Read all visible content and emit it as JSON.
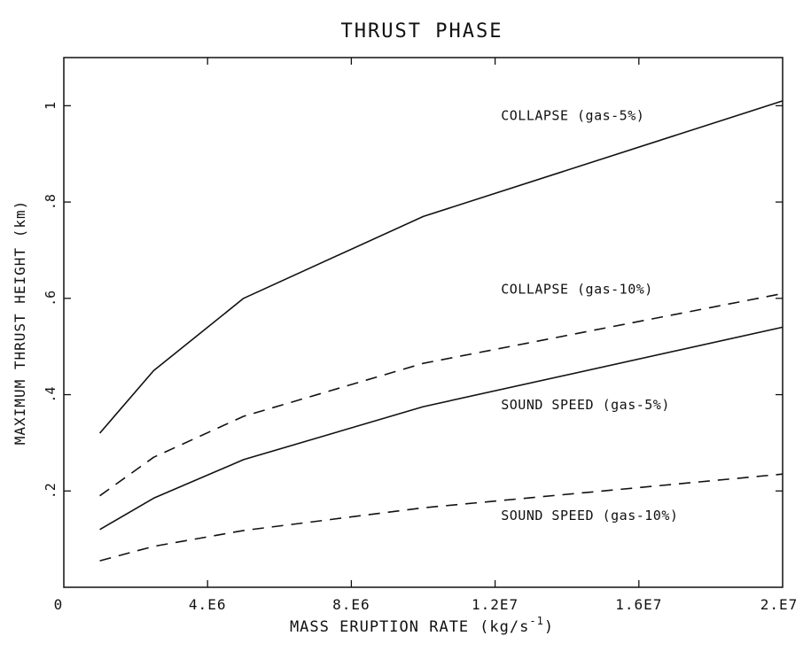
{
  "chart_data": {
    "type": "line",
    "title": "THRUST PHASE",
    "xlabel": "MASS ERUPTION RATE",
    "xlabel_unit_prefix": "(kg/s",
    "xlabel_unit_exp": "-1",
    "xlabel_unit_suffix": ")",
    "ylabel": "MAXIMUM THRUST HEIGHT (km)",
    "xlim": [
      0,
      20000000
    ],
    "ylim": [
      0,
      1.1
    ],
    "x_ticks": [
      {
        "value": 0,
        "label": "0"
      },
      {
        "value": 4000000,
        "label": "4.E6"
      },
      {
        "value": 8000000,
        "label": "8.E6"
      },
      {
        "value": 12000000,
        "label": "1.2E7"
      },
      {
        "value": 16000000,
        "label": "1.6E7"
      },
      {
        "value": 20000000,
        "label": "2.E7"
      }
    ],
    "y_ticks": [
      {
        "value": 0.2,
        "label": ".2"
      },
      {
        "value": 0.4,
        "label": ".4"
      },
      {
        "value": 0.6,
        "label": ".6"
      },
      {
        "value": 0.8,
        "label": ".8"
      },
      {
        "value": 1.0,
        "label": "1"
      }
    ],
    "grid": false,
    "series": [
      {
        "name": "COLLAPSE (gas-5%)",
        "style": "solid",
        "x": [
          1000000,
          2500000,
          5000000,
          10000000,
          20000000
        ],
        "y": [
          0.32,
          0.45,
          0.6,
          0.77,
          1.01
        ],
        "label_at": [
          15000000,
          0.97
        ]
      },
      {
        "name": "COLLAPSE (gas-10%)",
        "style": "dashed",
        "x": [
          1000000,
          2500000,
          5000000,
          10000000,
          20000000
        ],
        "y": [
          0.19,
          0.27,
          0.355,
          0.465,
          0.61
        ],
        "label_at": [
          15000000,
          0.61
        ]
      },
      {
        "name": "SOUND SPEED (gas-5%)",
        "style": "solid",
        "x": [
          1000000,
          2500000,
          5000000,
          10000000,
          20000000
        ],
        "y": [
          0.12,
          0.185,
          0.265,
          0.375,
          0.54
        ],
        "label_at": [
          15000000,
          0.37
        ]
      },
      {
        "name": "SOUND SPEED (gas-10%)",
        "style": "dashed",
        "x": [
          1000000,
          2500000,
          5000000,
          10000000,
          20000000
        ],
        "y": [
          0.055,
          0.085,
          0.118,
          0.165,
          0.235
        ],
        "label_at": [
          15000000,
          0.14
        ]
      }
    ]
  }
}
